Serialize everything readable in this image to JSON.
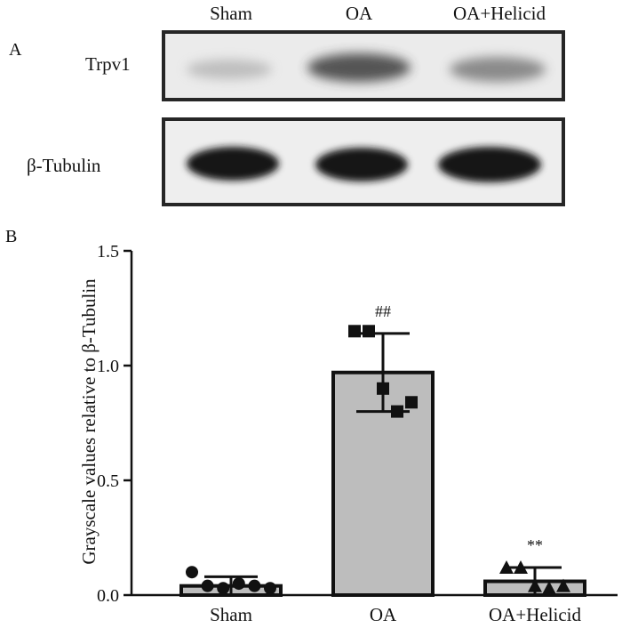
{
  "panel_a": {
    "label": "A",
    "lanes": [
      "Sham",
      "OA",
      "OA+Helicid"
    ],
    "blots": [
      {
        "protein": "Trpv1"
      },
      {
        "protein": "β-Tubulin"
      }
    ]
  },
  "panel_b": {
    "label": "B"
  },
  "chart_data": {
    "type": "bar",
    "categories": [
      "Sham",
      "OA",
      "OA+Helicid"
    ],
    "values": [
      0.04,
      0.97,
      0.06
    ],
    "errors": [
      0.04,
      0.17,
      0.06
    ],
    "points": [
      [
        0.1,
        0.04,
        0.03,
        0.05,
        0.04,
        0.03
      ],
      [
        1.15,
        1.15,
        0.9,
        0.8,
        0.84
      ],
      [
        0.12,
        0.12,
        0.04,
        0.03,
        0.04
      ]
    ],
    "markers": [
      "circle",
      "square",
      "triangle"
    ],
    "annotations": [
      "",
      "##",
      "**"
    ],
    "ylabel": "Grayscale values relative to β-Tubulin",
    "xlabel": "",
    "ylim": [
      0,
      1.5
    ],
    "yticks": [
      "0.0",
      "0.5",
      "1.0",
      "1.5"
    ],
    "grid": false,
    "bar_color": "#bdbdbd"
  }
}
